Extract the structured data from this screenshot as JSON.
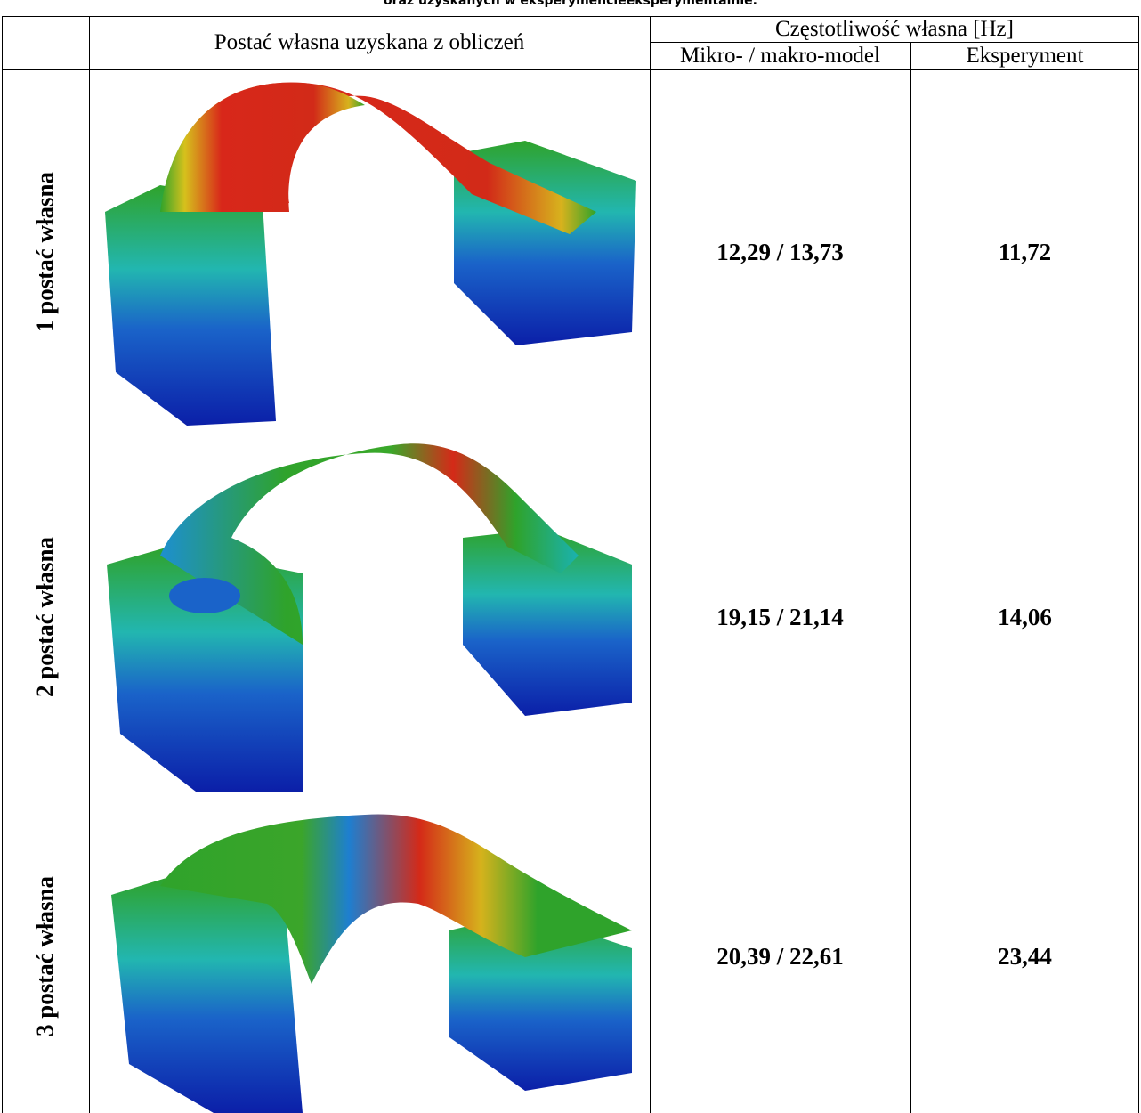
{
  "caption": "oraz  uzyskanych w eksperymencieeksperymentalnie.",
  "table": {
    "header": {
      "shape": "Postać własna uzyskana z obliczeń",
      "frequency": "Częstotliwość własna [Hz]",
      "columns": [
        "Mikro- / makro-model",
        "Eksperyment"
      ]
    },
    "rows": [
      {
        "label": "1 postać własna",
        "model": "12,29 / 13,73",
        "experiment": "11,72"
      },
      {
        "label": "2 postać własna",
        "model": "19,15 / 21,14",
        "experiment": "14,06"
      },
      {
        "label": "3 postać własna",
        "model": "20,39 / 22,61",
        "experiment": "23,44"
      }
    ]
  }
}
